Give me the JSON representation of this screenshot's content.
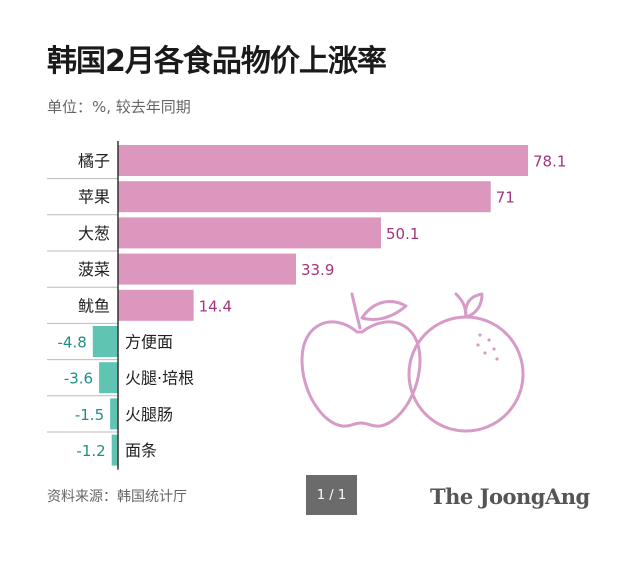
{
  "title": "韩国2月各食品物价上涨率",
  "subtitle": "单位：%, 较去年同期",
  "source": "资料来源：韩国统计厅",
  "pager": "1 / 1",
  "brand": "The JoongAng",
  "colors": {
    "positive": "#dc97bf",
    "negative": "#5fc4b2",
    "value_positive": "#a2357d",
    "value_negative": "#1f8f82",
    "illustration": "#d69bc7",
    "divider": "#333333"
  },
  "illustration_icons": [
    "apple-icon",
    "orange-icon"
  ],
  "chart_data": {
    "type": "bar",
    "orientation": "horizontal",
    "categories": [
      "橘子",
      "苹果",
      "大葱",
      "菠菜",
      "鱿鱼",
      "方便面",
      "火腿·培根",
      "火腿肠",
      "面条"
    ],
    "values": [
      78.1,
      71,
      50.1,
      33.9,
      14.4,
      -4.8,
      -3.6,
      -1.5,
      -1.2
    ],
    "value_labels": [
      "78.1",
      "71",
      "50.1",
      "33.9",
      "14.4",
      "-4.8",
      "-3.6",
      "-1.5",
      "-1.2"
    ],
    "title": "韩国2月各食品物价上涨率",
    "xlabel": "",
    "ylabel": "",
    "legend": "none",
    "grid": false
  }
}
